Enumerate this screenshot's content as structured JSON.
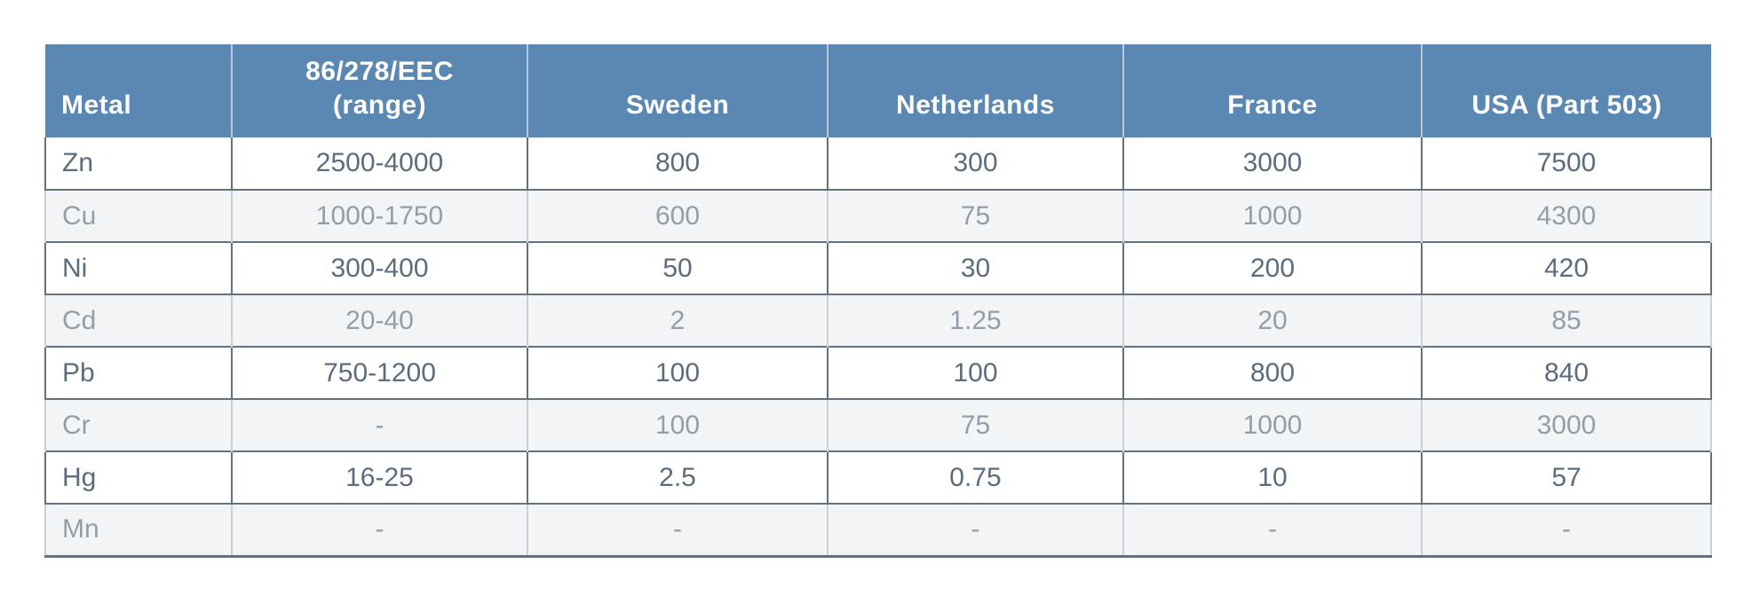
{
  "table": {
    "columns": [
      {
        "label": "Metal"
      },
      {
        "label": "86/278/EEC\n(range)"
      },
      {
        "label": "Sweden"
      },
      {
        "label": "Netherlands"
      },
      {
        "label": "France"
      },
      {
        "label": "USA (Part 503)"
      }
    ],
    "rows": [
      {
        "metal": "Zn",
        "values": [
          "2500-4000",
          "800",
          "300",
          "3000",
          "7500"
        ]
      },
      {
        "metal": "Cu",
        "values": [
          "1000-1750",
          "600",
          "75",
          "1000",
          "4300"
        ]
      },
      {
        "metal": "Ni",
        "values": [
          "300-400",
          "50",
          "30",
          "200",
          "420"
        ]
      },
      {
        "metal": "Cd",
        "values": [
          "20-40",
          "2",
          "1.25",
          "20",
          "85"
        ]
      },
      {
        "metal": "Pb",
        "values": [
          "750-1200",
          "100",
          "100",
          "800",
          "840"
        ]
      },
      {
        "metal": "Cr",
        "values": [
          "-",
          "100",
          "75",
          "1000",
          "3000"
        ]
      },
      {
        "metal": "Hg",
        "values": [
          "16-25",
          "2.5",
          "0.75",
          "10",
          "57"
        ]
      },
      {
        "metal": "Mn",
        "values": [
          "-",
          "-",
          "-",
          "-",
          "-"
        ]
      }
    ]
  },
  "colors": {
    "header_background": "#5b88b3",
    "header_text": "#ffffff",
    "header_divider": "#b9c8da",
    "dark_border": "#62727f",
    "light_border": "#c9d1d8",
    "stripe_background": "#f3f4f5",
    "strong_text": "#5c6c7c",
    "muted_text": "#939ea9"
  }
}
